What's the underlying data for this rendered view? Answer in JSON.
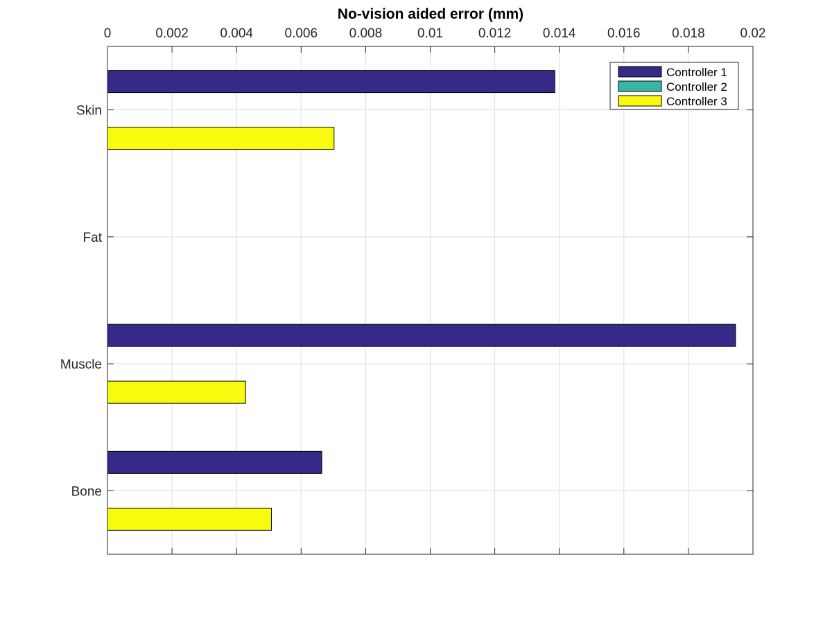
{
  "chart_data": {
    "type": "bar",
    "orientation": "horizontal",
    "title": "No-vision aided error (mm)",
    "xlabel": "",
    "ylabel": "",
    "xlim": [
      0,
      0.02
    ],
    "x_ticks": [
      "0",
      "0.002",
      "0.004",
      "0.006",
      "0.008",
      "0.01",
      "0.012",
      "0.014",
      "0.016",
      "0.018",
      "0.02"
    ],
    "x_tick_values": [
      0,
      0.002,
      0.004,
      0.006,
      0.008,
      0.01,
      0.012,
      0.014,
      0.016,
      0.018,
      0.02
    ],
    "x_axis_position": "top",
    "categories": [
      "Skin",
      "Fat",
      "Muscle",
      "Bone"
    ],
    "series": [
      {
        "name": "Controller 1",
        "color": "#352a87",
        "values": [
          0.01386,
          0,
          0.01946,
          0.00664
        ]
      },
      {
        "name": "Controller 2",
        "color": "#36b8a0",
        "values": [
          0,
          0,
          0,
          0
        ]
      },
      {
        "name": "Controller 3",
        "color": "#f9fb0e",
        "values": [
          0.00702,
          0,
          0.00428,
          0.00508
        ]
      }
    ],
    "grid": true,
    "legend_position": "top-right"
  }
}
